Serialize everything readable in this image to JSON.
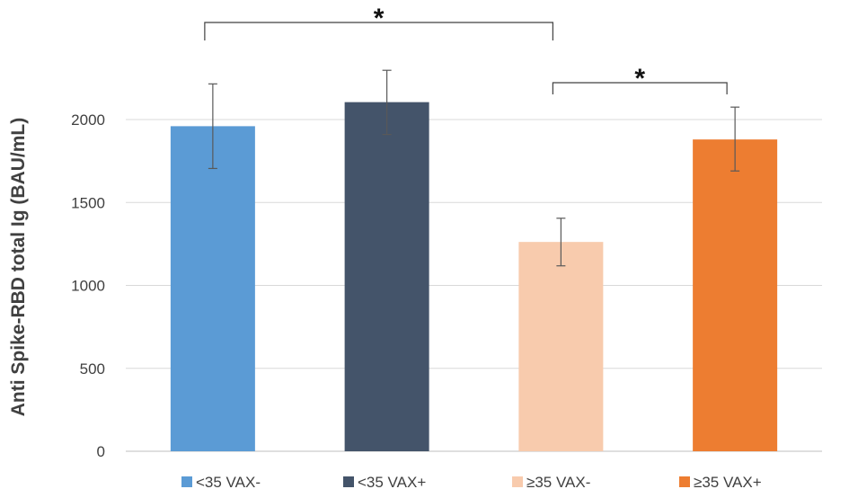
{
  "chart_data": {
    "type": "bar",
    "title": "",
    "xlabel": "",
    "ylabel": "Anti Spike-RBD total Ig (BAU/mL)",
    "ylim": [
      0,
      2200
    ],
    "yticks": [
      0,
      500,
      1000,
      1500,
      2000
    ],
    "grid": true,
    "legend_position": "bottom",
    "categories": [
      "<35 VAX-",
      "<35 VAX+",
      "≥35 VAX-",
      "≥35 VAX+"
    ],
    "values": [
      1960,
      2105,
      1262,
      1880
    ],
    "error_low": [
      1705,
      1910,
      1118,
      1690
    ],
    "error_high": [
      2215,
      2297,
      1405,
      2075
    ],
    "colors": [
      "#5B9BD5",
      "#44546A",
      "#F8CBAD",
      "#ED7D31"
    ],
    "significance": [
      {
        "from": 0,
        "to": 2,
        "label": "*"
      },
      {
        "from": 2,
        "to": 3,
        "label": "*"
      }
    ]
  }
}
